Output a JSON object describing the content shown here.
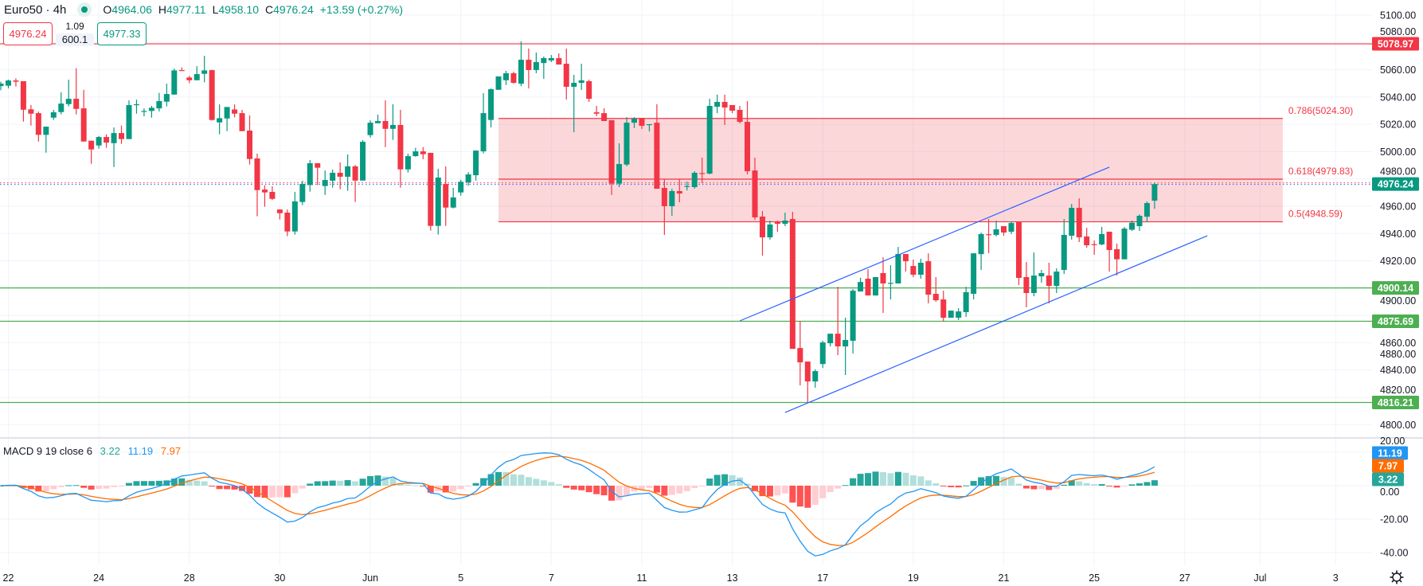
{
  "header": {
    "symbol_title": "Euro50 · 4h",
    "o_label": "O",
    "o": "4964.06",
    "h_label": "H",
    "h": "4977.11",
    "l_label": "L",
    "l": "4958.10",
    "c_label": "C",
    "c": "4976.24",
    "change": "+13.59 (+0.27%)",
    "status_icon": "market-open-dot"
  },
  "trade": {
    "sell_price": "4976.24",
    "spread": "1.09",
    "quantity": "600.1",
    "buy_price": "4977.33"
  },
  "colors": {
    "up": "#089981",
    "down": "#f23645",
    "support_line": "#4caf50",
    "resistance_line": "#f23645",
    "fib_fill": "#f23645",
    "channel": "#2962ff",
    "macd_line": "#2196f3",
    "signal_line": "#ff6d00",
    "hist_up_strong": "#26a69a",
    "hist_up_weak": "#b2dfdb",
    "hist_down_strong": "#ff5252",
    "hist_down_weak": "#ffcdd2"
  },
  "chart_data": [
    {
      "type": "candlestick",
      "symbol": "Euro50",
      "timeframe": "4h",
      "ylim": [
        4790,
        5110
      ],
      "grid": true,
      "y_ticks": [
        "5100.00",
        "5080.00",
        "5060.00",
        "5040.00",
        "5020.00",
        "5000.00",
        "4980.00",
        "4960.00",
        "4940.00",
        "4920.00",
        "4900.00",
        "4880.00",
        "4860.00",
        "4840.00",
        "4820.00",
        "4800.00"
      ],
      "x_ticks": [
        {
          "label": "22",
          "bar": 1
        },
        {
          "label": "24",
          "bar": 13
        },
        {
          "label": "28",
          "bar": 25
        },
        {
          "label": "30",
          "bar": 37
        },
        {
          "label": "Jun",
          "bar": 49
        },
        {
          "label": "5",
          "bar": 61
        },
        {
          "label": "7",
          "bar": 73
        },
        {
          "label": "11",
          "bar": 85
        },
        {
          "label": "13",
          "bar": 97
        },
        {
          "label": "17",
          "bar": 109
        },
        {
          "label": "19",
          "bar": 121
        },
        {
          "label": "21",
          "bar": 133
        },
        {
          "label": "25",
          "bar": 145
        },
        {
          "label": "27",
          "bar": 157
        },
        {
          "label": "Jul",
          "bar": 167
        },
        {
          "label": "3",
          "bar": 177
        }
      ],
      "candles_ohlc": [
        [
          5048.0,
          5051.2,
          5045.0,
          5049.8
        ],
        [
          5048.3,
          5052.7,
          5046.3,
          5052.1
        ],
        [
          5052.1,
          5053.7,
          5047.7,
          5051.2
        ],
        [
          5051.6,
          5051.6,
          5022.0,
          5030.7
        ],
        [
          5031.0,
          5034.1,
          5019.1,
          5027.8
        ],
        [
          5028.2,
          5029.4,
          5007.4,
          5012.3
        ],
        [
          5012.3,
          5018.3,
          4999.2,
          5018.3
        ],
        [
          5024.9,
          5030.6,
          5023.2,
          5028.8
        ],
        [
          5029.0,
          5043.4,
          5027.3,
          5035.2
        ],
        [
          5034.8,
          5052.7,
          5033.1,
          5038.7
        ],
        [
          5038.7,
          5061.1,
          5027.3,
          5031.3
        ],
        [
          5031.7,
          5045.3,
          5007.4,
          5007.4
        ],
        [
          5008.0,
          5008.0,
          4991.1,
          5001.6
        ],
        [
          5004.5,
          5011.5,
          5002.2,
          5010.7
        ],
        [
          5010.7,
          5012.7,
          5002.8,
          5006.6
        ],
        [
          5006.2,
          5017.7,
          4988.7,
          5013.6
        ],
        [
          5013.6,
          5019.1,
          5005.7,
          5009.2
        ],
        [
          5009.2,
          5037.6,
          5009.2,
          5034.1
        ],
        [
          5034.1,
          5038.1,
          5027.8,
          5034.7
        ],
        [
          5029.4,
          5031.7,
          5025.9,
          5029.8
        ],
        [
          5029.8,
          5033.5,
          5024.9,
          5032.1
        ],
        [
          5031.7,
          5043.0,
          5029.4,
          5037.0
        ],
        [
          5036.6,
          5049.8,
          5033.1,
          5042.2
        ],
        [
          5041.8,
          5060.9,
          5041.8,
          5059.5
        ],
        [
          5059.7,
          5061.7,
          5059.3,
          5059.3
        ],
        [
          5054.3,
          5055.5,
          5050.2,
          5052.3
        ],
        [
          5052.3,
          5062.6,
          5052.3,
          5056.8
        ],
        [
          5057.0,
          5070.2,
          5050.8,
          5059.5
        ],
        [
          5059.7,
          5059.9,
          5022.8,
          5023.2
        ],
        [
          5021.4,
          5034.6,
          5012.7,
          5024.5
        ],
        [
          5024.3,
          5032.7,
          5015.0,
          5032.7
        ],
        [
          5030.9,
          5034.6,
          5025.1,
          5027.8
        ],
        [
          5028.2,
          5030.6,
          5015.0,
          5015.0
        ],
        [
          5015.4,
          5026.5,
          4990.5,
          4994.6
        ],
        [
          4995.0,
          4998.5,
          4952.6,
          4971.8
        ],
        [
          4972.2,
          4975.3,
          4959.6,
          4970.1
        ],
        [
          4970.5,
          4974.6,
          4964.6,
          4965.4
        ],
        [
          4957.6,
          4957.6,
          4950.3,
          4954.9
        ],
        [
          4955.3,
          4957.6,
          4938.0,
          4941.5
        ],
        [
          4941.5,
          4970.5,
          4939.2,
          4963.5
        ],
        [
          4963.1,
          4978.7,
          4960.8,
          4976.3
        ],
        [
          4975.5,
          4993.8,
          4970.7,
          4991.5
        ],
        [
          4991.5,
          4991.5,
          4975.5,
          4988.2
        ],
        [
          4974.8,
          4986.2,
          4968.3,
          4979.2
        ],
        [
          4978.7,
          4986.8,
          4973.6,
          4984.5
        ],
        [
          4984.5,
          4992.1,
          4972.4,
          4981.6
        ],
        [
          4981.6,
          4997.9,
          4971.3,
          4989.2
        ],
        [
          4989.2,
          4990.3,
          4963.1,
          4978.8
        ],
        [
          4978.8,
          5008.4,
          4978.8,
          5007.2
        ],
        [
          5012.1,
          5023.0,
          5010.3,
          5021.2
        ],
        [
          5020.8,
          5027.1,
          5020.8,
          5022.4
        ],
        [
          5022.4,
          5037.6,
          5003.3,
          5016.7
        ],
        [
          5016.7,
          5034.7,
          5008.6,
          5019.5
        ],
        [
          5019.5,
          5030.6,
          4973.6,
          4987.0
        ],
        [
          4987.0,
          4998.5,
          4984.7,
          4996.7
        ],
        [
          4996.7,
          5002.8,
          4996.3,
          5000.2
        ],
        [
          5000.2,
          5003.3,
          4994.4,
          4998.1
        ],
        [
          4999.1,
          4999.1,
          4942.1,
          4945.6
        ],
        [
          4945.6,
          4987.4,
          4939.2,
          4981.0
        ],
        [
          4976.3,
          4989.2,
          4945.6,
          4959.0
        ],
        [
          4959.0,
          4973.4,
          4958.4,
          4966.4
        ],
        [
          4970.1,
          4979.4,
          4967.8,
          4977.9
        ],
        [
          4977.5,
          4985.0,
          4975.0,
          4983.3
        ],
        [
          4982.7,
          5000.8,
          4978.8,
          5000.8
        ],
        [
          5000.2,
          5042.8,
          4998.7,
          5028.2
        ],
        [
          5023.2,
          5046.3,
          5017.7,
          5045.7
        ],
        [
          5045.3,
          5055.1,
          5045.3,
          5055.1
        ],
        [
          5052.3,
          5059.2,
          5048.8,
          5057.4
        ],
        [
          5057.4,
          5058.6,
          5049.8,
          5050.4
        ],
        [
          5049.8,
          5080.7,
          5048.0,
          5067.3
        ],
        [
          5067.3,
          5075.5,
          5046.3,
          5059.8
        ],
        [
          5059.8,
          5072.6,
          5057.4,
          5065.6
        ],
        [
          5064.9,
          5069.7,
          5053.3,
          5068.5
        ],
        [
          5066.8,
          5070.8,
          5065.6,
          5068.5
        ],
        [
          5068.5,
          5072.0,
          5063.8,
          5063.8
        ],
        [
          5064.4,
          5075.5,
          5038.2,
          5047.5
        ],
        [
          5047.5,
          5056.2,
          5014.2,
          5050.4
        ],
        [
          5050.4,
          5064.4,
          5045.2,
          5052.2
        ],
        [
          5051.6,
          5052.7,
          5036.4,
          5038.7
        ],
        [
          5028.8,
          5033.5,
          5025.9,
          5027.8
        ],
        [
          5028.2,
          5031.7,
          5022.4,
          5022.4
        ],
        [
          5023.0,
          5023.0,
          4968.3,
          4976.5
        ],
        [
          4976.5,
          5006.1,
          4974.0,
          4990.9
        ],
        [
          4990.5,
          5025.3,
          4989.3,
          5021.2
        ],
        [
          5021.2,
          5025.3,
          5017.2,
          5024.2
        ],
        [
          5024.7,
          5024.7,
          5016.6,
          5018.9
        ],
        [
          5020.0,
          5020.1,
          5014.8,
          5020.1
        ],
        [
          5021.2,
          5034.7,
          4972.8,
          4972.8
        ],
        [
          4973.4,
          4979.8,
          4939.0,
          4960.0
        ],
        [
          4960.0,
          4972.8,
          4953.0,
          4971.1
        ],
        [
          4971.1,
          4979.8,
          4962.9,
          4969.3
        ],
        [
          4974.4,
          4978.1,
          4971.6,
          4974.8
        ],
        [
          4974.0,
          4985.7,
          4972.8,
          4984.5
        ],
        [
          4984.3,
          4995.6,
          4976.9,
          4984.1
        ],
        [
          4983.9,
          5038.7,
          4983.3,
          5033.5
        ],
        [
          5032.9,
          5041.7,
          5028.2,
          5036.4
        ],
        [
          5036.4,
          5041.7,
          5019.5,
          5032.3
        ],
        [
          5034.1,
          5034.1,
          5028.2,
          5030.0
        ],
        [
          5030.6,
          5033.5,
          5020.7,
          5021.8
        ],
        [
          5021.8,
          5037.0,
          4983.3,
          4985.6
        ],
        [
          4986.2,
          4995.6,
          4950.0,
          4951.8
        ],
        [
          4952.4,
          4956.5,
          4923.8,
          4937.2
        ],
        [
          4937.2,
          4949.5,
          4935.5,
          4946.6
        ],
        [
          4948.3,
          4949.5,
          4941.3,
          4947.1
        ],
        [
          4947.1,
          4955.3,
          4945.4,
          4949.5
        ],
        [
          4950.6,
          4955.9,
          4855.5,
          4855.5
        ],
        [
          4856.1,
          4876.0,
          4828.7,
          4845.6
        ],
        [
          4846.2,
          4846.2,
          4815.9,
          4831.6
        ],
        [
          4831.6,
          4840.4,
          4827.0,
          4839.2
        ],
        [
          4844.4,
          4861.4,
          4841.5,
          4860.2
        ],
        [
          4859.6,
          4866.6,
          4857.3,
          4866.6
        ],
        [
          4866.6,
          4901.0,
          4850.9,
          4857.3
        ],
        [
          4857.3,
          4878.3,
          4836.3,
          4862.0
        ],
        [
          4861.4,
          4899.3,
          4852.0,
          4898.1
        ],
        [
          4897.5,
          4907.5,
          4897.5,
          4904.5
        ],
        [
          4906.9,
          4913.9,
          4894.6,
          4894.6
        ],
        [
          4894.6,
          4908.1,
          4894.6,
          4908.1
        ],
        [
          4911.0,
          4922.6,
          4881.8,
          4903.4
        ],
        [
          4903.7,
          4916.8,
          4891.7,
          4903.8
        ],
        [
          4903.4,
          4930.2,
          4903.4,
          4925.0
        ],
        [
          4925.0,
          4925.0,
          4912.1,
          4919.7
        ],
        [
          4916.2,
          4920.9,
          4908.0,
          4909.8
        ],
        [
          4909.8,
          4921.5,
          4906.9,
          4918.6
        ],
        [
          4919.7,
          4925.5,
          4888.8,
          4895.2
        ],
        [
          4895.8,
          4908.1,
          4890.0,
          4891.1
        ],
        [
          4891.7,
          4898.1,
          4875.4,
          4878.3
        ],
        [
          4878.3,
          4883.5,
          4878.3,
          4883.5
        ],
        [
          4878.3,
          4885.3,
          4876.6,
          4882.9
        ],
        [
          4882.4,
          4901.0,
          4878.9,
          4897.0
        ],
        [
          4895.8,
          4925.5,
          4891.7,
          4925.5
        ],
        [
          4924.9,
          4940.7,
          4913.3,
          4939.6
        ],
        [
          4939.5,
          4950.6,
          4925.6,
          4939.3
        ],
        [
          4939.0,
          4949.5,
          4937.8,
          4943.1
        ],
        [
          4945.4,
          4945.4,
          4938.4,
          4940.7
        ],
        [
          4941.3,
          4948.9,
          4939.6,
          4947.7
        ],
        [
          4948.3,
          4948.3,
          4902.2,
          4907.5
        ],
        [
          4908.1,
          4919.1,
          4885.9,
          4896.4
        ],
        [
          4896.4,
          4926.1,
          4894.0,
          4909.2
        ],
        [
          4908.6,
          4913.3,
          4904.0,
          4911.0
        ],
        [
          4909.2,
          4918.6,
          4888.8,
          4901.6
        ],
        [
          4901.6,
          4914.5,
          4896.4,
          4912.1
        ],
        [
          4913.3,
          4950.6,
          4910.4,
          4939.0
        ],
        [
          4938.4,
          4961.7,
          4935.5,
          4958.8
        ],
        [
          4958.8,
          4965.8,
          4933.7,
          4937.2
        ],
        [
          4937.8,
          4944.2,
          4929.6,
          4931.4
        ],
        [
          4932.2,
          4934.9,
          4924.4,
          4932.0
        ],
        [
          4932.0,
          4944.8,
          4931.4,
          4939.6
        ],
        [
          4941.3,
          4941.3,
          4912.1,
          4927.9
        ],
        [
          4928.5,
          4932.6,
          4909.2,
          4921.1
        ],
        [
          4921.1,
          4944.8,
          4921.1,
          4943.6
        ],
        [
          4942.8,
          4949.5,
          4941.9,
          4947.9
        ],
        [
          4945.4,
          4954.1,
          4941.9,
          4953.0
        ],
        [
          4952.3,
          4963.5,
          4948.3,
          4962.3
        ],
        [
          4964.06,
          4977.11,
          4958.1,
          4976.24
        ]
      ],
      "last_price": {
        "value": 4976.24,
        "label": "4976.24"
      },
      "horizontal_lines": [
        {
          "price": 5078.97,
          "label": "5078.97",
          "kind": "resistance"
        },
        {
          "price": 4900.14,
          "label": "4900.14",
          "kind": "support"
        },
        {
          "price": 4875.69,
          "label": "4875.69",
          "kind": "support"
        },
        {
          "price": 4816.21,
          "label": "4816.21",
          "kind": "support"
        }
      ],
      "fibonacci_zone": {
        "start_bar": 66,
        "end_bar": 170,
        "levels": [
          {
            "ratio": 0.786,
            "price": 5024.3,
            "label": "0.786(5024.30)"
          },
          {
            "ratio": 0.618,
            "price": 4979.83,
            "label": "0.618(4979.83)"
          },
          {
            "ratio": 0.5,
            "price": 4948.59,
            "label": "0.5(4948.59)"
          }
        ]
      },
      "trend_channel": [
        {
          "from": {
            "bar": 98,
            "price": 4876.0
          },
          "to": {
            "bar": 147,
            "price": 4988.6
          }
        },
        {
          "from": {
            "bar": 104,
            "price": 4808.9
          },
          "to": {
            "bar": 160,
            "price": 4938.4
          }
        }
      ]
    },
    {
      "type": "macd",
      "title": "MACD 9 19 close 6",
      "fast": 9,
      "slow": 19,
      "signal": 6,
      "source": "close",
      "ylim": [
        -50,
        25
      ],
      "y_ticks": [
        "20.00",
        "0.00",
        "-20.00",
        "-40.00"
      ],
      "current": {
        "histogram": "3.22",
        "macd": "11.19",
        "signal": "7.97"
      }
    }
  ],
  "toolbar": {
    "settings_icon": "gear-icon"
  }
}
